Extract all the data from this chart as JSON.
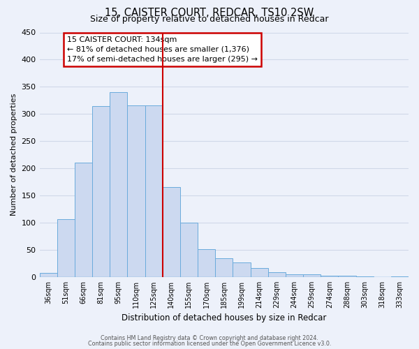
{
  "title": "15, CAISTER COURT, REDCAR, TS10 2SW",
  "subtitle": "Size of property relative to detached houses in Redcar",
  "xlabel": "Distribution of detached houses by size in Redcar",
  "ylabel": "Number of detached properties",
  "bar_labels": [
    "36sqm",
    "51sqm",
    "66sqm",
    "81sqm",
    "95sqm",
    "110sqm",
    "125sqm",
    "140sqm",
    "155sqm",
    "170sqm",
    "185sqm",
    "199sqm",
    "214sqm",
    "229sqm",
    "244sqm",
    "259sqm",
    "274sqm",
    "288sqm",
    "303sqm",
    "318sqm",
    "333sqm"
  ],
  "bar_heights": [
    7,
    106,
    211,
    314,
    340,
    316,
    316,
    165,
    100,
    51,
    35,
    27,
    16,
    9,
    5,
    5,
    2,
    2,
    1,
    0,
    1
  ],
  "bar_color": "#ccd9f0",
  "bar_edge_color": "#6aabdc",
  "ylim": [
    0,
    450
  ],
  "yticks": [
    0,
    50,
    100,
    150,
    200,
    250,
    300,
    350,
    400,
    450
  ],
  "vline_x_idx": 7,
  "vline_color": "#cc0000",
  "annotation_title": "15 CAISTER COURT: 134sqm",
  "annotation_line1": "← 81% of detached houses are smaller (1,376)",
  "annotation_line2": "17% of semi-detached houses are larger (295) →",
  "annotation_box_color": "#cc0000",
  "footer_line1": "Contains HM Land Registry data © Crown copyright and database right 2024.",
  "footer_line2": "Contains public sector information licensed under the Open Government Licence v3.0.",
  "bg_color": "#edf1fa",
  "grid_color": "#d0d8e8"
}
